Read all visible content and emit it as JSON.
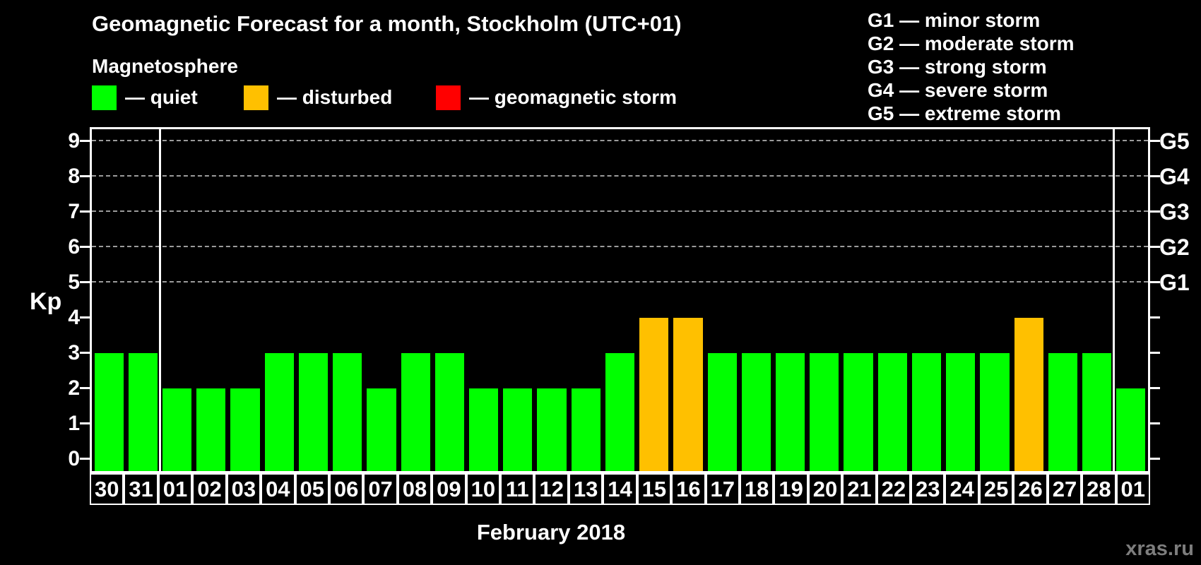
{
  "title": "Geomagnetic Forecast for a month, Stockholm (UTC+01)",
  "subtitle": "Magnetosphere",
  "legend": [
    {
      "label": "— quiet",
      "color": "#00ff00"
    },
    {
      "label": "— disturbed",
      "color": "#ffc000"
    },
    {
      "label": "— geomagnetic storm",
      "color": "#ff0000"
    }
  ],
  "g_legend": [
    "G1 — minor storm",
    "G2 — moderate storm",
    "G3 — strong storm",
    "G4 — severe storm",
    "G5 — extreme storm"
  ],
  "y_axis": {
    "label": "Kp",
    "ticks": [
      0,
      1,
      2,
      3,
      4,
      5,
      6,
      7,
      8,
      9
    ]
  },
  "right_axis": {
    "labels": [
      {
        "kp": 5,
        "text": "G1"
      },
      {
        "kp": 6,
        "text": "G2"
      },
      {
        "kp": 7,
        "text": "G3"
      },
      {
        "kp": 8,
        "text": "G4"
      },
      {
        "kp": 9,
        "text": "G5"
      }
    ]
  },
  "x_label": "February 2018",
  "watermark": "xras.ru",
  "chart_data": {
    "type": "bar",
    "title": "Geomagnetic Forecast for a month, Stockholm (UTC+01)",
    "xlabel": "February 2018",
    "ylabel": "Kp",
    "ylim": [
      0,
      9
    ],
    "grid_levels": [
      5,
      6,
      7,
      8,
      9
    ],
    "month_separators_after_index": [
      1,
      29
    ],
    "categories": [
      "30",
      "31",
      "01",
      "02",
      "03",
      "04",
      "05",
      "06",
      "07",
      "08",
      "09",
      "10",
      "11",
      "12",
      "13",
      "14",
      "15",
      "16",
      "17",
      "18",
      "19",
      "20",
      "21",
      "22",
      "23",
      "24",
      "25",
      "26",
      "27",
      "28",
      "01"
    ],
    "values": [
      3,
      3,
      2,
      2,
      2,
      3,
      3,
      3,
      2,
      3,
      3,
      2,
      2,
      2,
      2,
      3,
      4,
      4,
      3,
      3,
      3,
      3,
      3,
      3,
      3,
      3,
      3,
      4,
      3,
      3,
      2
    ],
    "value_colors": {
      "quiet_max": 3,
      "disturbed_max": 4,
      "quiet": "#00ff00",
      "disturbed": "#ffc000",
      "storm": "#ff0000"
    }
  }
}
